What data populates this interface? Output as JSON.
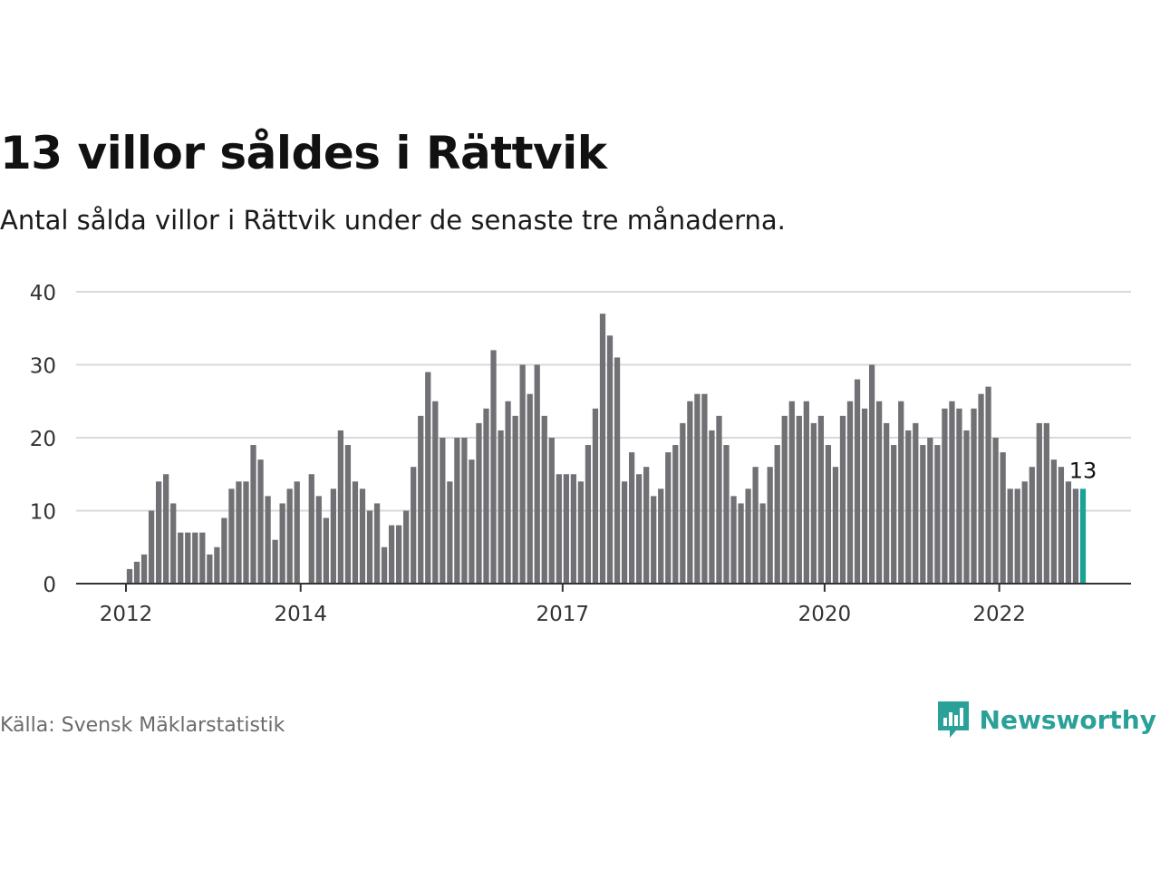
{
  "header": {
    "title": "13 villor såldes i Rättvik",
    "subtitle": "Antal sålda villor i Rättvik under de senaste tre månaderna."
  },
  "footer": {
    "source": "Källa: Svensk Mäklarstatistik",
    "brand": "Newsworthy",
    "brand_icon": "newsworthy-chart-icon"
  },
  "colors": {
    "bar": "#707075",
    "highlight": "#1aa394",
    "grid": "#d9d9d9",
    "axis": "#333333",
    "brand": "#2aa198"
  },
  "chart_data": {
    "type": "bar",
    "x_start": "2011-01",
    "x_end": "2023-01",
    "x": [
      "2012-01",
      "2012-02",
      "2012-03",
      "2012-04",
      "2012-05",
      "2012-06",
      "2012-07",
      "2012-08",
      "2012-09",
      "2012-10",
      "2012-11",
      "2012-12",
      "2013-01",
      "2013-02",
      "2013-03",
      "2013-04",
      "2013-05",
      "2013-06",
      "2013-07",
      "2013-08",
      "2013-09",
      "2013-10",
      "2013-11",
      "2013-12",
      "2014-01",
      "2014-02",
      "2014-03",
      "2014-04",
      "2014-05",
      "2014-06",
      "2014-07",
      "2014-08",
      "2014-09",
      "2014-10",
      "2014-11",
      "2014-12",
      "2015-01",
      "2015-02",
      "2015-03",
      "2015-04",
      "2015-05",
      "2015-06",
      "2015-07",
      "2015-08",
      "2015-09",
      "2015-10",
      "2015-11",
      "2015-12",
      "2016-01",
      "2016-02",
      "2016-03",
      "2016-04",
      "2016-05",
      "2016-06",
      "2016-07",
      "2016-08",
      "2016-09",
      "2016-10",
      "2016-11",
      "2016-12",
      "2017-01",
      "2017-02",
      "2017-03",
      "2017-04",
      "2017-05",
      "2017-06",
      "2017-07",
      "2017-08",
      "2017-09",
      "2017-10",
      "2017-11",
      "2017-12",
      "2018-01",
      "2018-02",
      "2018-03",
      "2018-04",
      "2018-05",
      "2018-06",
      "2018-07",
      "2018-08",
      "2018-09",
      "2018-10",
      "2018-11",
      "2018-12",
      "2019-01",
      "2019-02",
      "2019-03",
      "2019-04",
      "2019-05",
      "2019-06",
      "2019-07",
      "2019-08",
      "2019-09",
      "2019-10",
      "2019-11",
      "2019-12",
      "2020-01",
      "2020-02",
      "2020-03",
      "2020-04",
      "2020-05",
      "2020-06",
      "2020-07",
      "2020-08",
      "2020-09",
      "2020-10",
      "2020-11",
      "2020-12",
      "2021-01",
      "2021-02",
      "2021-03",
      "2021-04",
      "2021-05",
      "2021-06",
      "2021-07",
      "2021-08",
      "2021-09",
      "2021-10",
      "2021-11",
      "2021-12",
      "2022-01",
      "2022-02",
      "2022-03",
      "2022-04",
      "2022-05",
      "2022-06",
      "2022-07",
      "2022-08",
      "2022-09",
      "2022-10",
      "2022-11",
      "2022-12"
    ],
    "values": [
      2,
      3,
      4,
      10,
      14,
      15,
      11,
      7,
      7,
      7,
      7,
      4,
      5,
      9,
      13,
      14,
      14,
      19,
      17,
      12,
      6,
      11,
      13,
      14,
      0,
      15,
      12,
      9,
      13,
      21,
      19,
      14,
      13,
      10,
      11,
      5,
      8,
      8,
      10,
      16,
      23,
      29,
      25,
      20,
      14,
      20,
      20,
      17,
      22,
      24,
      32,
      21,
      25,
      23,
      30,
      26,
      30,
      23,
      20,
      15,
      15,
      15,
      14,
      19,
      24,
      37,
      34,
      31,
      14,
      18,
      15,
      16,
      12,
      13,
      18,
      19,
      22,
      25,
      26,
      26,
      21,
      23,
      19,
      12,
      11,
      13,
      16,
      11,
      16,
      19,
      23,
      25,
      23,
      25,
      22,
      23,
      19,
      16,
      23,
      25,
      28,
      24,
      30,
      25,
      22,
      19,
      25,
      21,
      22,
      19,
      20,
      19,
      24,
      25,
      24,
      21,
      24,
      26,
      27,
      20,
      18,
      13,
      13,
      14,
      16,
      22,
      22,
      17,
      16,
      14,
      13,
      13
    ],
    "highlight_index": 131,
    "highlight_label": "13",
    "y_ticks": [
      0,
      10,
      20,
      30,
      40
    ],
    "y_tick_labels": [
      "0",
      "10",
      "20",
      "30",
      "40"
    ],
    "x_ticks": [
      "2012-01",
      "2014-01",
      "2017-01",
      "2020-01",
      "2022-01"
    ],
    "x_tick_labels": [
      "2012",
      "2014",
      "2017",
      "2020",
      "2022"
    ],
    "ylim": [
      0,
      40
    ],
    "grid": true,
    "legend": "none"
  }
}
